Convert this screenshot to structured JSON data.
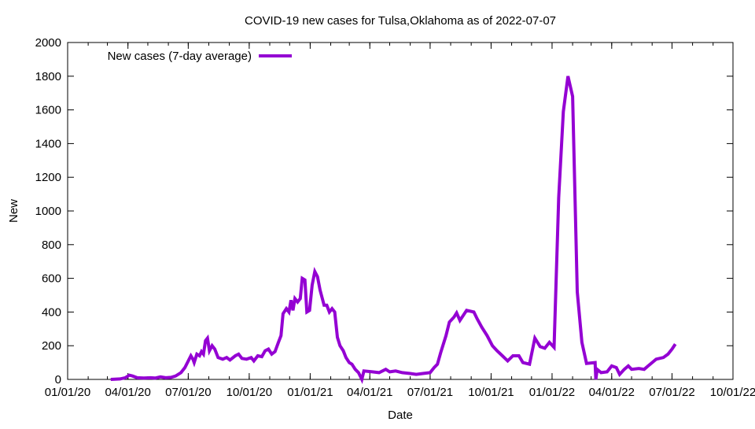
{
  "chart_data": {
    "type": "line",
    "title": "COVID-19 new cases for Tulsa,Oklahoma as of 2022-07-07",
    "xlabel": "Date",
    "ylabel": "New",
    "xlim": [
      "2020-01-01",
      "2022-10-01"
    ],
    "ylim": [
      0,
      2000
    ],
    "x_ticks": [
      "2020-01-01",
      "2020-04-01",
      "2020-07-01",
      "2020-10-01",
      "2021-01-01",
      "2021-04-01",
      "2021-07-01",
      "2021-10-01",
      "2022-01-01",
      "2022-04-01",
      "2022-07-01",
      "2022-10-01"
    ],
    "x_tick_labels": [
      "01/01/20",
      "04/01/20",
      "07/01/20",
      "10/01/20",
      "01/01/21",
      "04/01/21",
      "07/01/21",
      "10/01/21",
      "01/01/22",
      "04/01/22",
      "07/01/22",
      "10/01/22"
    ],
    "y_ticks": [
      0,
      200,
      400,
      600,
      800,
      1000,
      1200,
      1400,
      1600,
      1800,
      2000
    ],
    "grid": false,
    "legend_position": "top-left",
    "series": [
      {
        "name": "New cases (7-day average)",
        "color": "#9400d3",
        "points": [
          [
            "2020-03-06",
            0
          ],
          [
            "2020-03-20",
            3
          ],
          [
            "2020-03-28",
            10
          ],
          [
            "2020-04-03",
            25
          ],
          [
            "2020-04-08",
            20
          ],
          [
            "2020-04-15",
            10
          ],
          [
            "2020-04-25",
            8
          ],
          [
            "2020-05-05",
            10
          ],
          [
            "2020-05-12",
            8
          ],
          [
            "2020-05-20",
            15
          ],
          [
            "2020-05-28",
            10
          ],
          [
            "2020-06-05",
            12
          ],
          [
            "2020-06-12",
            20
          ],
          [
            "2020-06-20",
            40
          ],
          [
            "2020-06-26",
            70
          ],
          [
            "2020-07-01",
            110
          ],
          [
            "2020-07-05",
            140
          ],
          [
            "2020-07-08",
            120
          ],
          [
            "2020-07-10",
            100
          ],
          [
            "2020-07-14",
            150
          ],
          [
            "2020-07-18",
            140
          ],
          [
            "2020-07-21",
            165
          ],
          [
            "2020-07-24",
            150
          ],
          [
            "2020-07-27",
            230
          ],
          [
            "2020-07-30",
            245
          ],
          [
            "2020-08-02",
            170
          ],
          [
            "2020-08-06",
            200
          ],
          [
            "2020-08-10",
            180
          ],
          [
            "2020-08-15",
            130
          ],
          [
            "2020-08-22",
            120
          ],
          [
            "2020-08-28",
            130
          ],
          [
            "2020-09-02",
            115
          ],
          [
            "2020-09-10",
            140
          ],
          [
            "2020-09-15",
            150
          ],
          [
            "2020-09-20",
            125
          ],
          [
            "2020-09-27",
            120
          ],
          [
            "2020-10-04",
            130
          ],
          [
            "2020-10-08",
            110
          ],
          [
            "2020-10-14",
            140
          ],
          [
            "2020-10-20",
            135
          ],
          [
            "2020-10-25",
            170
          ],
          [
            "2020-10-30",
            180
          ],
          [
            "2020-11-04",
            150
          ],
          [
            "2020-11-09",
            165
          ],
          [
            "2020-11-14",
            220
          ],
          [
            "2020-11-18",
            260
          ],
          [
            "2020-11-21",
            390
          ],
          [
            "2020-11-26",
            420
          ],
          [
            "2020-11-30",
            400
          ],
          [
            "2020-12-03",
            470
          ],
          [
            "2020-12-06",
            410
          ],
          [
            "2020-12-09",
            480
          ],
          [
            "2020-12-13",
            460
          ],
          [
            "2020-12-17",
            480
          ],
          [
            "2020-12-20",
            600
          ],
          [
            "2020-12-24",
            590
          ],
          [
            "2020-12-27",
            400
          ],
          [
            "2020-12-31",
            410
          ],
          [
            "2021-01-04",
            560
          ],
          [
            "2021-01-08",
            640
          ],
          [
            "2021-01-12",
            610
          ],
          [
            "2021-01-16",
            530
          ],
          [
            "2021-01-22",
            440
          ],
          [
            "2021-01-26",
            440
          ],
          [
            "2021-01-30",
            400
          ],
          [
            "2021-02-03",
            420
          ],
          [
            "2021-02-07",
            400
          ],
          [
            "2021-02-11",
            250
          ],
          [
            "2021-02-15",
            200
          ],
          [
            "2021-02-20",
            170
          ],
          [
            "2021-02-24",
            130
          ],
          [
            "2021-03-01",
            100
          ],
          [
            "2021-03-05",
            90
          ],
          [
            "2021-03-10",
            60
          ],
          [
            "2021-03-15",
            40
          ],
          [
            "2021-03-20",
            0
          ],
          [
            "2021-03-23",
            50
          ],
          [
            "2021-04-05",
            45
          ],
          [
            "2021-04-15",
            40
          ],
          [
            "2021-04-25",
            60
          ],
          [
            "2021-05-01",
            45
          ],
          [
            "2021-05-10",
            50
          ],
          [
            "2021-05-20",
            40
          ],
          [
            "2021-06-01",
            35
          ],
          [
            "2021-06-10",
            30
          ],
          [
            "2021-06-20",
            35
          ],
          [
            "2021-07-01",
            40
          ],
          [
            "2021-07-07",
            70
          ],
          [
            "2021-07-12",
            90
          ],
          [
            "2021-07-17",
            160
          ],
          [
            "2021-07-25",
            260
          ],
          [
            "2021-07-30",
            340
          ],
          [
            "2021-08-06",
            370
          ],
          [
            "2021-08-10",
            395
          ],
          [
            "2021-08-15",
            350
          ],
          [
            "2021-08-25",
            410
          ],
          [
            "2021-09-05",
            400
          ],
          [
            "2021-09-10",
            360
          ],
          [
            "2021-09-17",
            310
          ],
          [
            "2021-09-25",
            260
          ],
          [
            "2021-10-03",
            200
          ],
          [
            "2021-10-10",
            170
          ],
          [
            "2021-10-18",
            140
          ],
          [
            "2021-10-26",
            110
          ],
          [
            "2021-11-03",
            140
          ],
          [
            "2021-11-12",
            140
          ],
          [
            "2021-11-18",
            100
          ],
          [
            "2021-11-28",
            90
          ],
          [
            "2021-12-06",
            245
          ],
          [
            "2021-12-14",
            195
          ],
          [
            "2021-12-21",
            185
          ],
          [
            "2021-12-28",
            220
          ],
          [
            "2022-01-04",
            190
          ],
          [
            "2022-01-11",
            1080
          ],
          [
            "2022-01-18",
            1590
          ],
          [
            "2022-01-25",
            1800
          ],
          [
            "2022-02-01",
            1680
          ],
          [
            "2022-02-08",
            520
          ],
          [
            "2022-02-15",
            220
          ],
          [
            "2022-02-22",
            95
          ],
          [
            "2022-03-07",
            100
          ],
          [
            "2022-03-08",
            0
          ],
          [
            "2022-03-10",
            60
          ],
          [
            "2022-03-16",
            40
          ],
          [
            "2022-03-25",
            45
          ],
          [
            "2022-04-01",
            80
          ],
          [
            "2022-04-08",
            70
          ],
          [
            "2022-04-13",
            30
          ],
          [
            "2022-04-20",
            60
          ],
          [
            "2022-04-26",
            80
          ],
          [
            "2022-05-01",
            60
          ],
          [
            "2022-05-12",
            65
          ],
          [
            "2022-05-20",
            60
          ],
          [
            "2022-05-26",
            80
          ],
          [
            "2022-06-01",
            100
          ],
          [
            "2022-06-07",
            120
          ],
          [
            "2022-06-18",
            130
          ],
          [
            "2022-06-25",
            150
          ],
          [
            "2022-07-01",
            180
          ],
          [
            "2022-07-06",
            210
          ]
        ]
      }
    ]
  }
}
